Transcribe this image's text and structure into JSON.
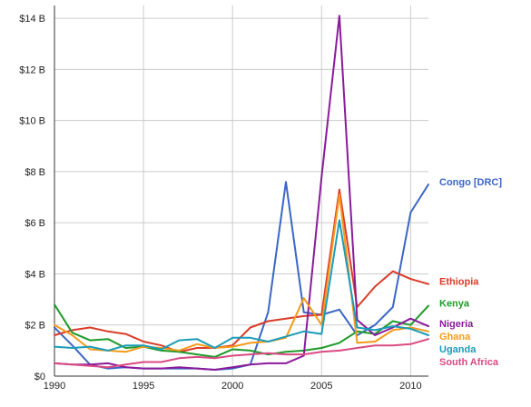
{
  "chart_data": {
    "type": "line",
    "title": "",
    "xlabel": "",
    "ylabel": "",
    "xlim": [
      1990,
      2011
    ],
    "ylim": [
      0,
      14.5
    ],
    "x_ticks": [
      1990,
      1995,
      2000,
      2005,
      2010
    ],
    "x_tick_labels": [
      "1990",
      "1995",
      "2000",
      "2005",
      "2010"
    ],
    "y_ticks": [
      0,
      2,
      4,
      6,
      8,
      10,
      12,
      14
    ],
    "y_tick_labels": [
      "$0",
      "$2 B",
      "$4 B",
      "$6 B",
      "$8 B",
      "$10 B",
      "$12 B",
      "$14 B"
    ],
    "grid": true,
    "legend_placement": "right",
    "x": [
      1990,
      1991,
      1992,
      1993,
      1994,
      1995,
      1996,
      1997,
      1998,
      1999,
      2000,
      2001,
      2002,
      2003,
      2004,
      2005,
      2006,
      2007,
      2008,
      2009,
      2010,
      2011
    ],
    "series": [
      {
        "name": "Congo [DRC]",
        "color": "#3b66c4",
        "values": [
          1.9,
          1.2,
          0.45,
          0.3,
          0.35,
          0.3,
          0.3,
          0.3,
          0.3,
          0.25,
          0.3,
          0.45,
          2.5,
          7.6,
          2.5,
          2.4,
          2.6,
          1.6,
          2.0,
          2.7,
          6.4,
          7.5
        ]
      },
      {
        "name": "Ethiopia",
        "color": "#d93b28",
        "values": [
          1.6,
          1.8,
          1.9,
          1.75,
          1.65,
          1.35,
          1.2,
          0.95,
          1.1,
          1.1,
          1.2,
          1.9,
          2.15,
          2.25,
          2.35,
          2.4,
          7.3,
          2.7,
          3.5,
          4.1,
          3.8,
          3.6
        ]
      },
      {
        "name": "Kenya",
        "color": "#1f9a2a",
        "values": [
          2.8,
          1.7,
          1.4,
          1.45,
          1.1,
          1.15,
          1.0,
          0.95,
          0.85,
          0.75,
          1.05,
          1.0,
          0.85,
          0.95,
          1.0,
          1.1,
          1.3,
          1.75,
          1.65,
          2.15,
          2.0,
          2.75
        ]
      },
      {
        "name": "Nigeria",
        "color": "#8a1a9b",
        "values": [
          0.5,
          0.45,
          0.45,
          0.5,
          0.35,
          0.3,
          0.3,
          0.35,
          0.3,
          0.25,
          0.35,
          0.45,
          0.5,
          0.5,
          0.8,
          7.8,
          14.1,
          2.2,
          1.6,
          1.9,
          2.25,
          1.95
        ]
      },
      {
        "name": "Ghana",
        "color": "#f59a1a",
        "values": [
          2.0,
          1.6,
          1.05,
          1.0,
          0.95,
          1.15,
          1.1,
          1.0,
          1.25,
          1.1,
          1.15,
          1.3,
          1.35,
          1.5,
          3.05,
          2.0,
          7.1,
          1.3,
          1.35,
          1.8,
          1.9,
          1.75
        ]
      },
      {
        "name": "Uganda",
        "color": "#1b9cb8",
        "values": [
          1.15,
          1.1,
          1.15,
          1.0,
          1.2,
          1.2,
          1.05,
          1.4,
          1.45,
          1.1,
          1.5,
          1.5,
          1.35,
          1.55,
          1.75,
          1.65,
          6.1,
          1.9,
          1.8,
          1.95,
          1.85,
          1.6
        ]
      },
      {
        "name": "South Africa",
        "color": "#d94a82",
        "values": [
          0.5,
          0.45,
          0.4,
          0.35,
          0.45,
          0.55,
          0.55,
          0.7,
          0.75,
          0.7,
          0.8,
          0.85,
          0.9,
          0.85,
          0.85,
          0.95,
          1.0,
          1.1,
          1.2,
          1.2,
          1.25,
          1.45
        ]
      }
    ]
  }
}
